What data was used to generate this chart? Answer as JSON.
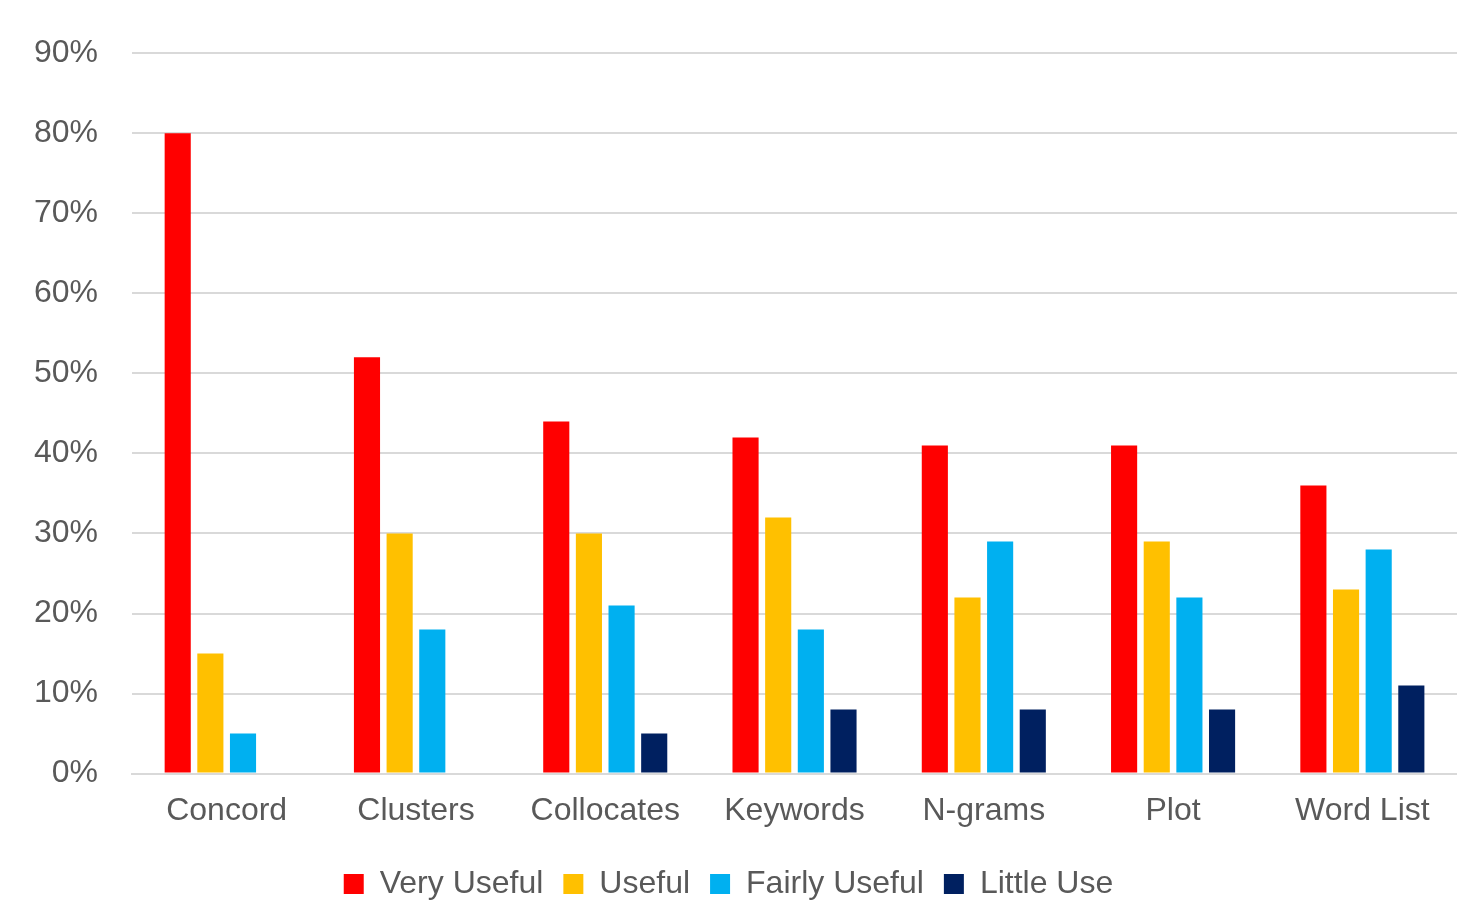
{
  "chart_data": {
    "type": "bar",
    "categories": [
      "Concord",
      "Clusters",
      "Collocates",
      "Keywords",
      "N-grams",
      "Plot",
      "Word List"
    ],
    "series": [
      {
        "name": "Very Useful",
        "color": "#ff0000",
        "values": [
          80,
          52,
          44,
          42,
          41,
          41,
          36
        ]
      },
      {
        "name": "Useful",
        "color": "#ffc000",
        "values": [
          15,
          30,
          30,
          32,
          22,
          29,
          23
        ]
      },
      {
        "name": "Fairly Useful",
        "color": "#00b0f0",
        "values": [
          5,
          18,
          21,
          18,
          29,
          22,
          28
        ]
      },
      {
        "name": "Little Use",
        "color": "#002060",
        "values": [
          0,
          0,
          5,
          8,
          8,
          8,
          11
        ]
      }
    ],
    "ylim": [
      0,
      90
    ],
    "yticks": [
      {
        "value": 0,
        "label": "0%"
      },
      {
        "value": 10,
        "label": "10%"
      },
      {
        "value": 20,
        "label": "20%"
      },
      {
        "value": 30,
        "label": "30%"
      },
      {
        "value": 40,
        "label": "40%"
      },
      {
        "value": 50,
        "label": "50%"
      },
      {
        "value": 60,
        "label": "60%"
      },
      {
        "value": 70,
        "label": "70%"
      },
      {
        "value": 80,
        "label": "80%"
      },
      {
        "value": 90,
        "label": "90%"
      }
    ],
    "grid": "y",
    "legend": "bottom"
  }
}
